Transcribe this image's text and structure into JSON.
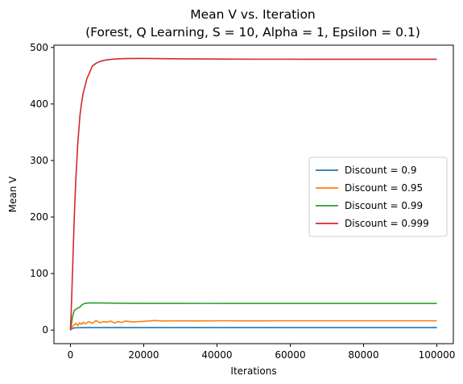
{
  "chart_data": {
    "type": "line",
    "title": "Mean V vs. Iteration",
    "subtitle": "(Forest, Q Learning, S = 10, Alpha = 1, Epsilon = 0.1)",
    "xlabel": "Iterations",
    "ylabel": "Mean V",
    "xlim": [
      -4500,
      104500
    ],
    "ylim": [
      -24,
      504
    ],
    "x_ticks": [
      0,
      20000,
      40000,
      60000,
      80000,
      100000
    ],
    "y_ticks": [
      0,
      100,
      200,
      300,
      400,
      500
    ],
    "grid": false,
    "legend_position": "center-right",
    "series": [
      {
        "name": "Discount = 0.9",
        "color": "#1f77b4",
        "x": [
          0,
          300,
          600,
          1000,
          1500,
          2000,
          3000,
          5000,
          10000,
          20000,
          40000,
          60000,
          80000,
          100000
        ],
        "y": [
          0,
          2,
          3.2,
          3.8,
          4.1,
          4.2,
          4.3,
          4.4,
          4.4,
          4.4,
          4.4,
          4.4,
          4.4,
          4.4
        ]
      },
      {
        "name": "Discount = 0.95",
        "color": "#ff7f0e",
        "x": [
          0,
          500,
          1000,
          1500,
          2000,
          2500,
          3000,
          3500,
          4000,
          5000,
          6000,
          7000,
          8000,
          9000,
          10000,
          11000,
          12000,
          13000,
          14000,
          15000,
          17000,
          20000,
          23000,
          25000,
          30000,
          35000,
          40000,
          50000,
          60000,
          70000,
          80000,
          90000,
          100000
        ],
        "y": [
          0,
          6,
          9,
          12,
          8,
          13,
          10,
          14,
          11,
          15,
          12,
          17,
          13,
          15,
          14,
          16,
          12.5,
          15,
          13.5,
          16,
          14.5,
          15.5,
          17,
          16,
          16.5,
          16.2,
          16.5,
          16.4,
          16.5,
          16.5,
          16.5,
          16.5,
          16.5
        ]
      },
      {
        "name": "Discount = 0.99",
        "color": "#2ca02c",
        "x": [
          0,
          300,
          600,
          1000,
          1500,
          2000,
          2500,
          3000,
          3500,
          4000,
          5000,
          6000,
          8000,
          10000,
          15000,
          20000,
          30000,
          50000,
          70000,
          100000
        ],
        "y": [
          0,
          12,
          24,
          34,
          37,
          39,
          40,
          44,
          46,
          47.5,
          48,
          48.2,
          48,
          47.8,
          47.5,
          47.3,
          47.2,
          47.1,
          47.1,
          47.1
        ]
      },
      {
        "name": "Discount = 0.999",
        "color": "#d62728",
        "x": [
          0,
          200,
          400,
          600,
          800,
          1000,
          1200,
          1500,
          1800,
          2000,
          2300,
          2600,
          3000,
          3500,
          4000,
          4500,
          5000,
          5500,
          6000,
          7000,
          8000,
          9000,
          10000,
          12000,
          15000,
          20000,
          25000,
          30000,
          40000,
          50000,
          60000,
          70000,
          80000,
          90000,
          100000
        ],
        "y": [
          0,
          30,
          70,
          110,
          150,
          190,
          225,
          270,
          305,
          330,
          355,
          380,
          400,
          420,
          432,
          445,
          452,
          460,
          467,
          472,
          475,
          477,
          478,
          479.5,
          480.3,
          480.5,
          480.2,
          479.9,
          479.5,
          479.2,
          479.2,
          479.1,
          479.1,
          479.1,
          479.1
        ]
      }
    ]
  }
}
